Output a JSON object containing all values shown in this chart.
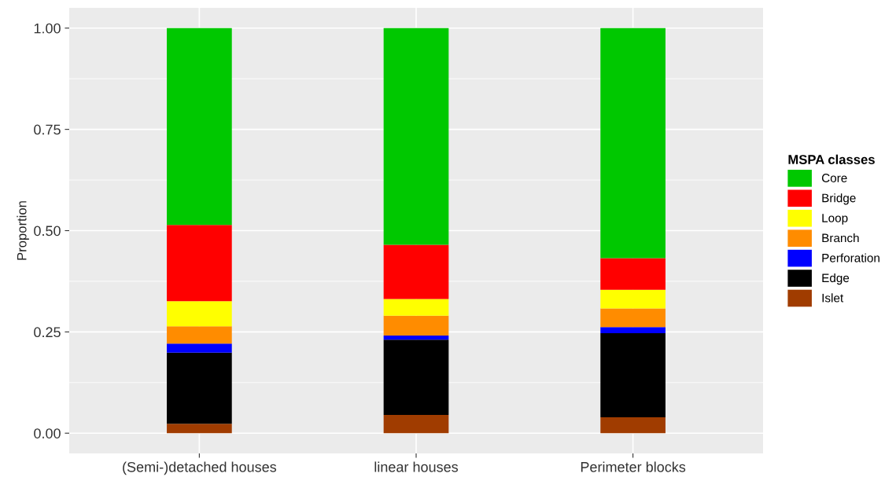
{
  "chart_data": {
    "type": "bar",
    "stacked": true,
    "ylabel": "Proportion",
    "legend_title": "MSPA classes",
    "categories": [
      "(Semi-)detached houses",
      "linear houses",
      "Perimeter blocks"
    ],
    "series": [
      {
        "name": "Islet",
        "color": "#a03c00",
        "values": [
          0.023,
          0.045,
          0.039
        ]
      },
      {
        "name": "Edge",
        "color": "#000000",
        "values": [
          0.176,
          0.186,
          0.208
        ]
      },
      {
        "name": "Perforation",
        "color": "#0000ff",
        "values": [
          0.022,
          0.01,
          0.015
        ]
      },
      {
        "name": "Branch",
        "color": "#ff8c00",
        "values": [
          0.043,
          0.049,
          0.046
        ]
      },
      {
        "name": "Loop",
        "color": "#ffff00",
        "values": [
          0.062,
          0.041,
          0.046
        ]
      },
      {
        "name": "Bridge",
        "color": "#ff0000",
        "values": [
          0.188,
          0.134,
          0.078
        ]
      },
      {
        "name": "Core",
        "color": "#00c800",
        "values": [
          0.486,
          0.535,
          0.568
        ]
      }
    ],
    "ylim": [
      -0.05,
      1.05
    ],
    "yticks": [
      {
        "value": 0,
        "label": "0.00"
      },
      {
        "value": 0.25,
        "label": "0.25"
      },
      {
        "value": 0.5,
        "label": "0.50"
      },
      {
        "value": 0.75,
        "label": "0.75"
      },
      {
        "value": 1,
        "label": "1.00"
      }
    ],
    "grid": true,
    "legend": "right"
  }
}
